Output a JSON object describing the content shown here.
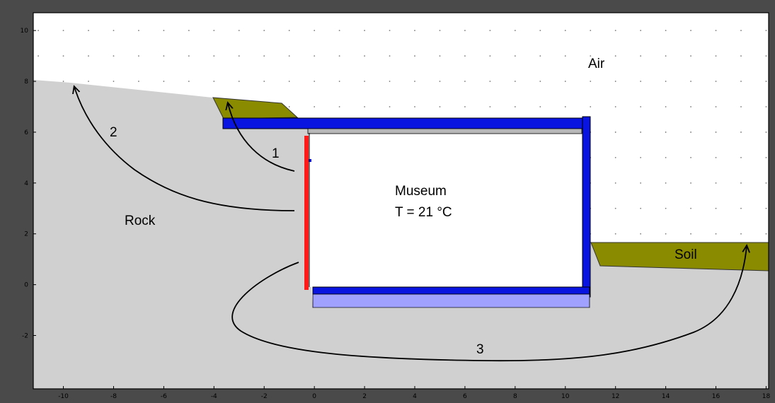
{
  "labels": {
    "air": "Air",
    "rock": "Rock",
    "soil": "Soil",
    "museum_line1": "Museum",
    "museum_line2": "T = 21 °C",
    "arrow1": "1",
    "arrow2": "2",
    "arrow3": "3"
  },
  "axes": {
    "x_ticks": [
      "-10",
      "-8",
      "-6",
      "-4",
      "-2",
      "0",
      "2",
      "4",
      "6",
      "8",
      "10",
      "12",
      "14",
      "16",
      "18"
    ],
    "y_ticks": [
      "10",
      "8",
      "6",
      "4",
      "2",
      "0",
      "-2"
    ]
  },
  "colors": {
    "rock": "#d0d0d0",
    "soil": "#8b8b00",
    "insulation": "#0a14e0",
    "slab": "#a0a0ff",
    "wall_red": "#ff1a1a",
    "ceiling": "#b8b8b8",
    "dot": "#7a7a7a"
  }
}
